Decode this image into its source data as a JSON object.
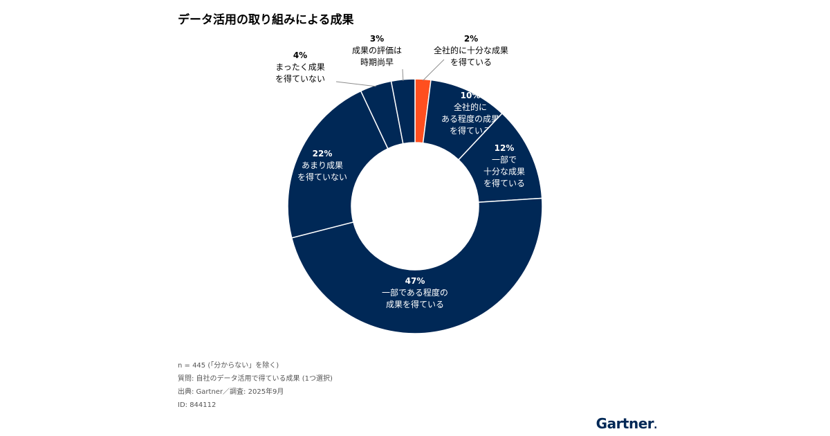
{
  "colors": {
    "navy": "#002856",
    "accent": "#ff4f1f",
    "separator": "#ffffff",
    "leader": "#8c8c8c",
    "outside_text": "#000000",
    "inside_text": "#ffffff"
  },
  "chart_data": {
    "type": "pie",
    "donut": true,
    "title": "データ活用の取り組みによる成果",
    "start_angle_deg": 0,
    "direction": "clockwise",
    "slices": [
      {
        "name": "全社的に十分な成果を得ている",
        "value": 2,
        "label_pct": "2%",
        "label_lines": [
          "全社的に十分な成果",
          "を得ている"
        ],
        "color": "accent",
        "label_position": "outside"
      },
      {
        "name": "全社的にある程度の成果を得ている",
        "value": 10,
        "label_pct": "10%",
        "label_lines": [
          "全社的に",
          "ある程度の成果",
          "を得ている"
        ],
        "color": "navy",
        "label_position": "inside"
      },
      {
        "name": "一部で十分な成果を得ている",
        "value": 12,
        "label_pct": "12%",
        "label_lines": [
          "一部で",
          "十分な成果",
          "を得ている"
        ],
        "color": "navy",
        "label_position": "inside"
      },
      {
        "name": "一部である程度の成果を得ている",
        "value": 47,
        "label_pct": "47%",
        "label_lines": [
          "一部である程度の",
          "成果を得ている"
        ],
        "color": "navy",
        "label_position": "inside"
      },
      {
        "name": "あまり成果を得ていない",
        "value": 22,
        "label_pct": "22%",
        "label_lines": [
          "あまり成果",
          "を得ていない"
        ],
        "color": "navy",
        "label_position": "inside"
      },
      {
        "name": "まったく成果を得ていない",
        "value": 4,
        "label_pct": "4%",
        "label_lines": [
          "まったく成果",
          "を得ていない"
        ],
        "color": "navy",
        "label_position": "outside"
      },
      {
        "name": "成果の評価は時期尚早",
        "value": 3,
        "label_pct": "3%",
        "label_lines": [
          "成果の評価は",
          "時期尚早"
        ],
        "color": "navy",
        "label_position": "outside"
      }
    ]
  },
  "notes": {
    "n": "n = 445 (「分からない」を除く)",
    "question": "質問: 自社のデータ活用で得ている成果 (1つ選択)",
    "source": "出典: Gartner／調査: 2025年9月",
    "id": "ID: 844112"
  },
  "brand": {
    "name": "Gartner",
    "mark": "."
  }
}
